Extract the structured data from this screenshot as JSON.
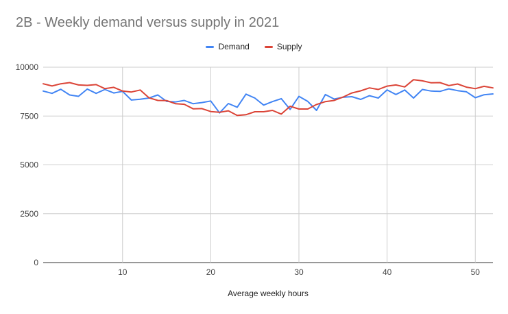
{
  "chart_data": {
    "type": "line",
    "title": "2B - Weekly demand versus supply in 2021",
    "xlabel": "Average weekly hours",
    "ylabel": "",
    "xlim": [
      1,
      52
    ],
    "ylim": [
      0,
      10000
    ],
    "x_ticks": [
      10,
      20,
      30,
      40,
      50
    ],
    "y_ticks": [
      0,
      2500,
      5000,
      7500,
      10000
    ],
    "grid": true,
    "legend_position": "top",
    "x": [
      1,
      2,
      3,
      4,
      5,
      6,
      7,
      8,
      9,
      10,
      11,
      12,
      13,
      14,
      15,
      16,
      17,
      18,
      19,
      20,
      21,
      22,
      23,
      24,
      25,
      26,
      27,
      28,
      29,
      30,
      31,
      32,
      33,
      34,
      35,
      36,
      37,
      38,
      39,
      40,
      41,
      42,
      43,
      44,
      45,
      46,
      47,
      48,
      49,
      50,
      51,
      52
    ],
    "series": [
      {
        "name": "Demand",
        "color": "#4285f4",
        "values": [
          8780,
          8660,
          8870,
          8580,
          8510,
          8880,
          8660,
          8860,
          8680,
          8760,
          8320,
          8360,
          8420,
          8580,
          8250,
          8220,
          8300,
          8130,
          8190,
          8270,
          7660,
          8140,
          7950,
          8620,
          8420,
          8060,
          8240,
          8390,
          7840,
          8510,
          8250,
          7790,
          8600,
          8370,
          8460,
          8490,
          8350,
          8540,
          8420,
          8840,
          8600,
          8830,
          8420,
          8860,
          8780,
          8760,
          8890,
          8800,
          8740,
          8440,
          8590,
          8630
        ]
      },
      {
        "name": "Supply",
        "color": "#db4437",
        "values": [
          9150,
          9040,
          9150,
          9210,
          9090,
          9070,
          9110,
          8900,
          8970,
          8780,
          8730,
          8830,
          8430,
          8300,
          8290,
          8130,
          8100,
          7870,
          7880,
          7730,
          7690,
          7770,
          7530,
          7570,
          7720,
          7720,
          7790,
          7600,
          8000,
          7860,
          7860,
          8090,
          8240,
          8300,
          8470,
          8680,
          8790,
          8940,
          8860,
          9030,
          9090,
          8990,
          9360,
          9300,
          9200,
          9210,
          9060,
          9140,
          8980,
          8900,
          9020,
          8940
        ]
      }
    ]
  }
}
